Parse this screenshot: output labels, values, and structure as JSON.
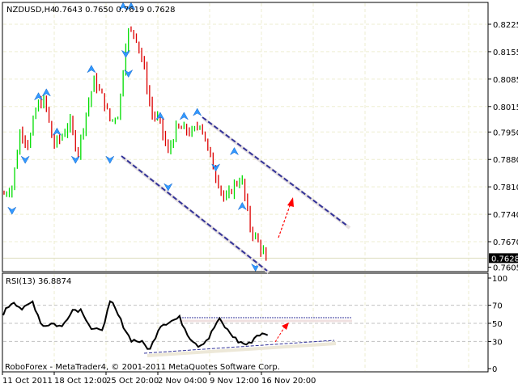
{
  "chart_data": [
    {
      "type": "bar",
      "title": "NZDUSD,H4",
      "ohlc_header": "0.7643 0.7650 0.7619 0.7628",
      "last_price": "0.7628",
      "price_ticks": [
        "0.8225",
        "0.8155",
        "0.8085",
        "0.8015",
        "0.7950",
        "0.7880",
        "0.7810",
        "0.7740",
        "0.7670",
        "0.7605"
      ],
      "ylim": [
        0.76,
        0.828
      ],
      "grid": true,
      "colors": {
        "up": "#00dd00",
        "down": "#dd0000",
        "fractal": "#3399ff",
        "channel": "#333399",
        "forecast": "#ff0000"
      },
      "approx_price_path": [
        0.7792,
        0.7812,
        0.7957,
        0.7916,
        0.8019,
        0.8029,
        0.7916,
        0.7936,
        0.7977,
        0.7895,
        0.7998,
        0.8081,
        0.8039,
        0.7977,
        0.7998,
        0.8204,
        0.8204,
        0.8122,
        0.7998,
        0.7977,
        0.7895,
        0.7957,
        0.7957,
        0.7946,
        0.7977,
        0.7895,
        0.7833,
        0.7771,
        0.7812,
        0.7833,
        0.7709,
        0.7668,
        0.7628
      ]
    },
    {
      "type": "line",
      "title": "RSI(13) 36.8874",
      "ylim": [
        0,
        100
      ],
      "ticks": [
        "100",
        "70",
        "50",
        "30",
        "0"
      ],
      "levels": [
        70,
        50,
        30
      ],
      "approx_values": [
        61,
        75,
        65,
        74,
        47,
        50,
        46,
        65,
        65,
        44,
        41,
        75,
        53,
        32,
        30,
        21,
        48,
        52,
        56,
        35,
        25,
        34,
        55,
        41,
        30,
        26,
        38,
        36.89
      ]
    }
  ],
  "x_ticks": [
    "11 Oct 2011",
    "18 Oct 12:00",
    "25 Oct 20:00",
    "2 Nov 04:00",
    "9 Nov 12:00",
    "16 Nov 20:00"
  ],
  "copyright": "RoboForex - MetaTrader4, © 2001-2011 MetaQuotes Software Corp."
}
